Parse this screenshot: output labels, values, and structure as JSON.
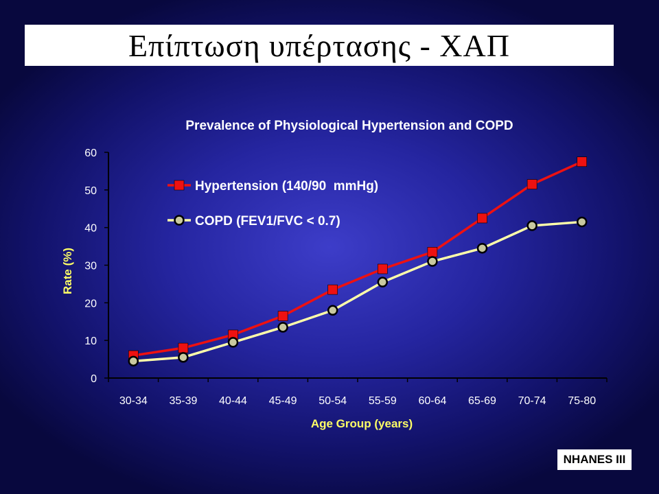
{
  "slide": {
    "title": "Επίπτωση υπέρτασης - ΧΑΠ",
    "footer": "NHANES III"
  },
  "chart_data": {
    "type": "line",
    "title": "Prevalence of Physiological Hypertension and COPD",
    "xlabel": "Age Group (years)",
    "ylabel": "Rate (%)",
    "categories": [
      "30-34",
      "35-39",
      "40-44",
      "45-49",
      "50-54",
      "55-59",
      "60-64",
      "65-69",
      "70-74",
      "75-80"
    ],
    "yticks": [
      0,
      10,
      20,
      30,
      40,
      50,
      60
    ],
    "ylim": [
      0,
      60
    ],
    "grid": false,
    "legend_position": "top-left",
    "series": [
      {
        "name": "Hypertension (140/90  mmHg)",
        "color": "#ee1111",
        "marker": "square",
        "values": [
          6.0,
          8.0,
          11.5,
          16.5,
          23.5,
          29.0,
          33.5,
          42.5,
          51.5,
          57.5
        ]
      },
      {
        "name": "COPD (FEV1/FVC < 0.7)",
        "color": "#ffffaa",
        "marker": "circle",
        "values": [
          4.5,
          5.5,
          9.5,
          13.5,
          18.0,
          25.5,
          31.0,
          34.5,
          40.5,
          41.5
        ]
      }
    ]
  }
}
